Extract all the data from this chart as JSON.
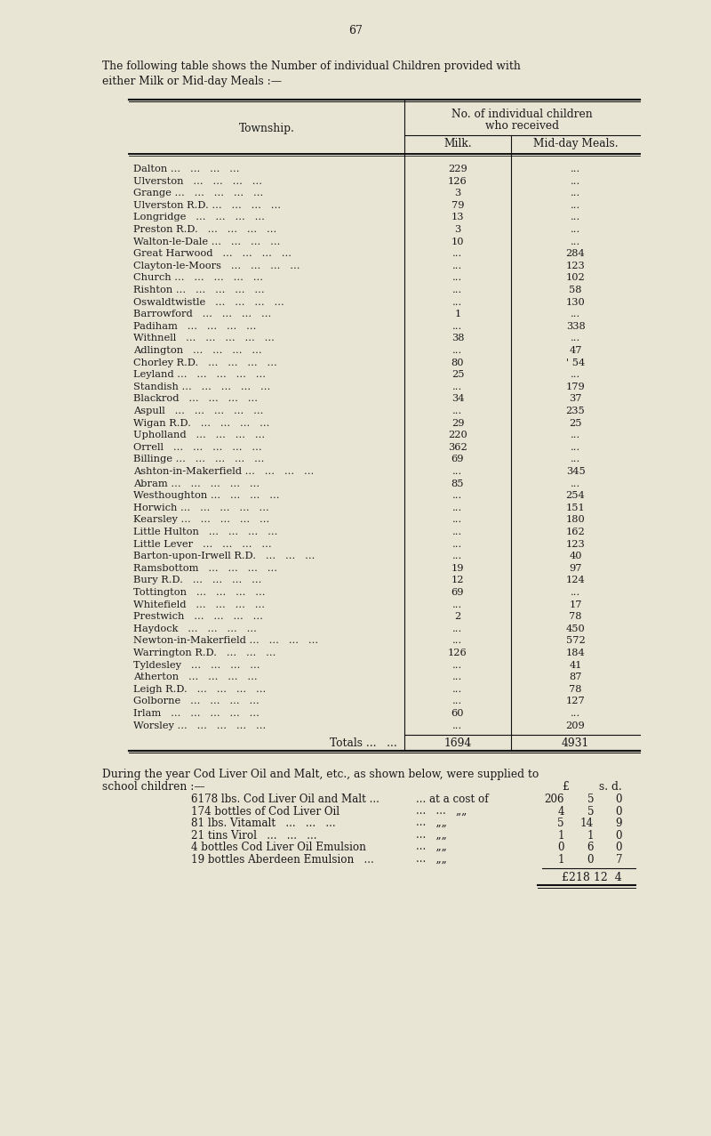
{
  "page_number": "67",
  "intro_line1": "The following table shows the Number of individual Children provided with",
  "intro_line2": "either Milk or Mid-day Meals :—",
  "bg_color": "#e8e5d5",
  "table_header_col1": "Township.",
  "table_header_col2a": "No. of individual children",
  "table_header_col2b": "who received",
  "table_subheader_milk": "Milk.",
  "table_subheader_meals": "Mid-day Meals.",
  "rows": [
    [
      "Dalton  ...",
      "...",
      "...",
      "...",
      "...",
      "229",
      "..."
    ],
    [
      "Ulverston",
      "...",
      "...",
      "...",
      "...",
      "126",
      "..."
    ],
    [
      "Grange  ...",
      "...",
      "...",
      "...",
      "...",
      "3",
      "..."
    ],
    [
      "Ulverston R.D. ...",
      "...",
      "...",
      "...",
      "79",
      "..."
    ],
    [
      "Longridge",
      "...",
      "...",
      "...",
      "...",
      "13",
      "..."
    ],
    [
      "Preston R.D.",
      "...",
      "...",
      "...",
      "...",
      "3",
      "..."
    ],
    [
      "Walton-le-Dale ...",
      "...",
      "...",
      "...",
      "10",
      "..."
    ],
    [
      "Great Harwood",
      "...",
      "...",
      "...",
      "...",
      "...",
      "284"
    ],
    [
      "Clayton-le-Moors",
      "...",
      "...",
      "...",
      "...",
      "123"
    ],
    [
      "Church  ...",
      "...",
      "...",
      "...",
      "...",
      "...",
      "102"
    ],
    [
      "Rishton ...",
      "...",
      "...",
      "...",
      "...",
      "...",
      "58"
    ],
    [
      "Oswaldtwistle",
      "...",
      "...",
      "...",
      "...",
      "130"
    ],
    [
      "Barrowford",
      "...",
      "...",
      "...",
      "...",
      "1",
      "..."
    ],
    [
      "Padiham",
      "...",
      "...",
      "...",
      "...",
      "...",
      "338"
    ],
    [
      "Withnell ...",
      "...",
      "...",
      "...",
      "...",
      "38",
      "..."
    ],
    [
      "Adlington",
      "...",
      "...",
      "...",
      "...",
      "...",
      "47"
    ],
    [
      "Chorley R.D.",
      "...",
      "...",
      "...",
      "...",
      "80",
      "' 54"
    ],
    [
      "Leyland ...",
      "...",
      "...",
      "...",
      "...",
      "25",
      "..."
    ],
    [
      "Standish ...",
      "...",
      "...",
      "...",
      "...",
      "...",
      "179"
    ],
    [
      "Blackrod...",
      "...",
      "...",
      "...",
      "...",
      "34",
      "37"
    ],
    [
      "Aspull",
      "...",
      "...",
      "...",
      "...",
      "...",
      "235"
    ],
    [
      "Wigan R.D.",
      "...",
      "...",
      "...",
      "...",
      "29",
      "25"
    ],
    [
      "Upholland",
      "...",
      "...",
      "...",
      "...",
      "220",
      "..."
    ],
    [
      "Orrell",
      "...",
      "...",
      "...",
      "...",
      "362",
      "..."
    ],
    [
      "Billinge ...",
      "...",
      "...",
      "...",
      "...",
      "69",
      "..."
    ],
    [
      "Ashton-in-Makerfield ...",
      "...",
      "...",
      "...",
      "345"
    ],
    [
      "Abram  ...",
      "...",
      "...",
      "...",
      "...",
      "85",
      "..."
    ],
    [
      "Westhoughton ...",
      "...",
      "...",
      "...",
      "...",
      "254"
    ],
    [
      "Horwich ...",
      "...",
      "...",
      "...",
      "...",
      "...",
      "151"
    ],
    [
      "Kearsley ...",
      "...",
      "...",
      "...",
      "...",
      "...",
      "180"
    ],
    [
      "Little Hulton",
      "...",
      "...",
      "...",
      "...",
      "...",
      "162"
    ],
    [
      "Little Lever",
      "...",
      "...",
      "...",
      "...",
      "...",
      "123"
    ],
    [
      "Barton-upon-Irwell R.D.",
      "...",
      "...",
      "...",
      "40"
    ],
    [
      "Ramsbottom",
      "...",
      "...",
      "...",
      "...",
      "19",
      "97"
    ],
    [
      "Bury R.D.",
      "...",
      "...",
      "...",
      "...",
      "12",
      "124"
    ],
    [
      "Tottington",
      "...",
      "...",
      "...",
      "...",
      "69",
      "..."
    ],
    [
      "Whitefield",
      "...",
      "...",
      "...",
      "...",
      "...",
      "17"
    ],
    [
      "Prestwich",
      "...",
      "...",
      "...",
      "...",
      "2",
      "78"
    ],
    [
      "Haydock...",
      "...",
      "...",
      "...",
      "...",
      "...",
      "450"
    ],
    [
      "Newton-in-Makerfield ...",
      "...",
      "...",
      "...",
      "572"
    ],
    [
      "Warrington R.D.",
      "...",
      "...",
      "...",
      "126",
      "184"
    ],
    [
      "Tyldesley",
      "...",
      "...",
      "...",
      "...",
      "...",
      "41"
    ],
    [
      "Atherton",
      "...",
      "...",
      "...",
      "...",
      "...",
      "87"
    ],
    [
      "Leigh R.D.",
      "...",
      "...",
      "...",
      "...",
      "...",
      "78"
    ],
    [
      "Golborne...",
      "...",
      "...",
      "...",
      "...",
      "...",
      "127"
    ],
    [
      "Irlam",
      "...",
      "...",
      "...",
      "...",
      "60",
      "..."
    ],
    [
      "Worsley ...",
      "...",
      "...",
      "...",
      "...",
      "...",
      "209"
    ]
  ],
  "row_names": [
    "Dalton",
    "Ulverston",
    "Grange",
    "Ulverston R.D.",
    "Longridge",
    "Preston R.D.",
    "Walton-le-Dale",
    "Great Harwood",
    "Clayton-le-Moors",
    "Church",
    "Rishton",
    "Oswaldtwistle",
    "Barrowford",
    "Padiham",
    "Withnell",
    "Adlington",
    "Chorley R.D.",
    "Leyland",
    "Standish",
    "Blackrod",
    "Aspull",
    "Wigan R.D.",
    "Upholland",
    "Orrell",
    "Billinge",
    "Ashton-in-Makerfield",
    "Abram",
    "Westhoughton",
    "Horwich",
    "Kearsley",
    "Little Hulton",
    "Little Lever",
    "Barton-upon-Irwell R.D.",
    "Ramsbottom",
    "Bury R.D.",
    "Tottington",
    "Whitefield",
    "Prestwich",
    "Haydock",
    "Newton-in-Makerfield",
    "Warrington R.D.",
    "Tyldesley",
    "Atherton",
    "Leigh R.D.",
    "Golborne",
    "Irlam",
    "Worsley"
  ],
  "row_dots": [
    "...",
    "...",
    "...",
    "...",
    "...",
    "...",
    "...",
    "...",
    "...",
    "...",
    "...",
    "...",
    "...",
    "...",
    "...",
    "...",
    "...",
    "...",
    "...",
    "...",
    "...",
    "...",
    "...",
    "...",
    "...",
    "...",
    "...",
    "...",
    "...",
    "...",
    "...",
    "...",
    "...",
    "...",
    "...",
    "...",
    "...",
    "...",
    "...",
    "...",
    "...",
    "...",
    "...",
    "...",
    "...",
    "...",
    "..."
  ],
  "row_milk": [
    "229",
    "126",
    "3",
    "79",
    "13",
    "3",
    "10",
    "...",
    "...",
    "...",
    "...",
    "...",
    "1",
    "...",
    "38",
    "...",
    "80",
    "25",
    "...",
    "34",
    "...",
    "29",
    "220",
    "362",
    "69",
    "...",
    "85",
    "...",
    "...",
    "...",
    "...",
    "...",
    "...",
    "19",
    "12",
    "69",
    "...",
    "2",
    "...",
    "...",
    "126",
    "...",
    "...",
    "...",
    "...",
    "60",
    "..."
  ],
  "row_meals": [
    "...",
    "...",
    "...",
    "...",
    "...",
    "...",
    "...",
    "284",
    "123",
    "102",
    "58",
    "130",
    "...",
    "338",
    "...",
    "47",
    "' 54",
    "...",
    "179",
    "37",
    "235",
    "25",
    "...",
    "...",
    "...",
    "345",
    "...",
    "254",
    "151",
    "180",
    "162",
    "123",
    "40",
    "97",
    "124",
    "...",
    "17",
    "78",
    "450",
    "572",
    "184",
    "41",
    "87",
    "78",
    "127",
    "...",
    "209"
  ],
  "row_name_suffixes": [
    " ...   ...   ...   ...",
    "   ...   ...   ...   ...",
    " ...   ...   ...   ...   ...",
    " ...   ...   ...   ...",
    "   ...   ...   ...   ...",
    "   ...   ...   ...   ...",
    " ...   ...   ...   ...",
    "   ...   ...   ...   ...",
    "   ...   ...   ...   ...",
    " ...   ...   ...   ...   ...",
    " ...   ...   ...   ...   ...",
    "   ...   ...   ...   ...",
    "   ...   ...   ...   ...",
    "   ...   ...   ...   ...",
    "   ...   ...   ...   ...   ...",
    "   ...   ...   ...   ...",
    "   ...   ...   ...   ...",
    " ...   ...   ...   ...   ...",
    " ...   ...   ...   ...   ...",
    "   ...   ...   ...   ...",
    "   ...   ...   ...   ...   ...",
    "   ...   ...   ...   ...",
    "   ...   ...   ...   ...",
    "   ...   ...   ...   ...   ...",
    " ...   ...   ...   ...   ...",
    " ...   ...   ...   ...",
    " ...   ...   ...   ...   ...",
    " ...   ...   ...   ...",
    " ...   ...   ...   ...   ...",
    " ...   ...   ...   ...   ...",
    "   ...   ...   ...   ...",
    "   ...   ...   ...   ...",
    "   ...   ...   ...",
    "   ...   ...   ...   ...",
    "   ...   ...   ...   ...",
    "   ...   ...   ...   ...",
    "   ...   ...   ...   ...",
    "   ...   ...   ...   ...",
    "   ...   ...   ...   ...",
    " ...   ...   ...   ...",
    "   ...   ...   ...",
    "   ...   ...   ...   ...",
    "   ...   ...   ...   ...",
    "   ...   ...   ...   ...",
    "   ...   ...   ...   ...",
    "   ...   ...   ...   ...   ...",
    " ...   ...   ...   ...   ..."
  ],
  "totals_label": "Totals ...",
  "totals_dots": "...",
  "totals_milk": "1694",
  "totals_meals": "4931",
  "sec2_line1": "During the year Cod Liver Oil and Malt, etc., as shown below, were supplied to",
  "sec2_line2": "school children :—",
  "sec2_col_e": "£",
  "sec2_col_sd": "s. d.",
  "sec2_items": [
    {
      "desc": "6178 lbs. Cod Liver Oil and Malt ...",
      "mid": "... at a cost of",
      "pounds": "206",
      "s": "5",
      "d": "0"
    },
    {
      "desc": "174 bottles of Cod Liver Oil",
      "mid": "...   ...   „„",
      "pounds": "4",
      "s": "5",
      "d": "0"
    },
    {
      "desc": "81 lbs. Vitamalt   ...   ...   ...",
      "mid": "...   „„",
      "pounds": "5",
      "s": "14",
      "d": "9"
    },
    {
      "desc": "21 tins Virol   ...   ...   ...",
      "mid": "...   „„",
      "pounds": "1",
      "s": "1",
      "d": "0"
    },
    {
      "desc": "4 bottles Cod Liver Oil Emulsion",
      "mid": "...   „„",
      "pounds": "0",
      "s": "6",
      "d": "0"
    },
    {
      "desc": "19 bottles Aberdeen Emulsion   ...",
      "mid": "...   „„",
      "pounds": "1",
      "s": "0",
      "d": "7"
    }
  ],
  "sec2_total_label": "£218 12  4"
}
